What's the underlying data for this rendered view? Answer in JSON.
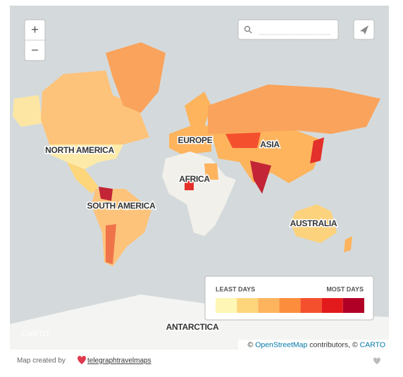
{
  "zoom": {
    "in": "+",
    "out": "−"
  },
  "labels": {
    "north_america": "NORTH AMERICA",
    "south_america": "SOUTH AMERICA",
    "europe": "EUROPE",
    "asia": "ASIA",
    "africa": "AFRICA",
    "australia": "AUSTRALIA",
    "antarctica": "ANTARCTICA"
  },
  "legend": {
    "min_label": "LEAST DAYS",
    "max_label": "MOST DAYS",
    "colors": [
      "#fef6b4",
      "#fdd67c",
      "#fdb45d",
      "#fc8d3c",
      "#f4502e",
      "#e31a1c",
      "#b10026"
    ]
  },
  "watermark": "CARTO",
  "attribution": {
    "prefix": "©",
    "osm": "OpenStreetMap",
    "middle": "contributors, ©",
    "carto": "CARTO"
  },
  "footer": {
    "text": "Map created by",
    "link": "telegraphtravelmaps"
  }
}
